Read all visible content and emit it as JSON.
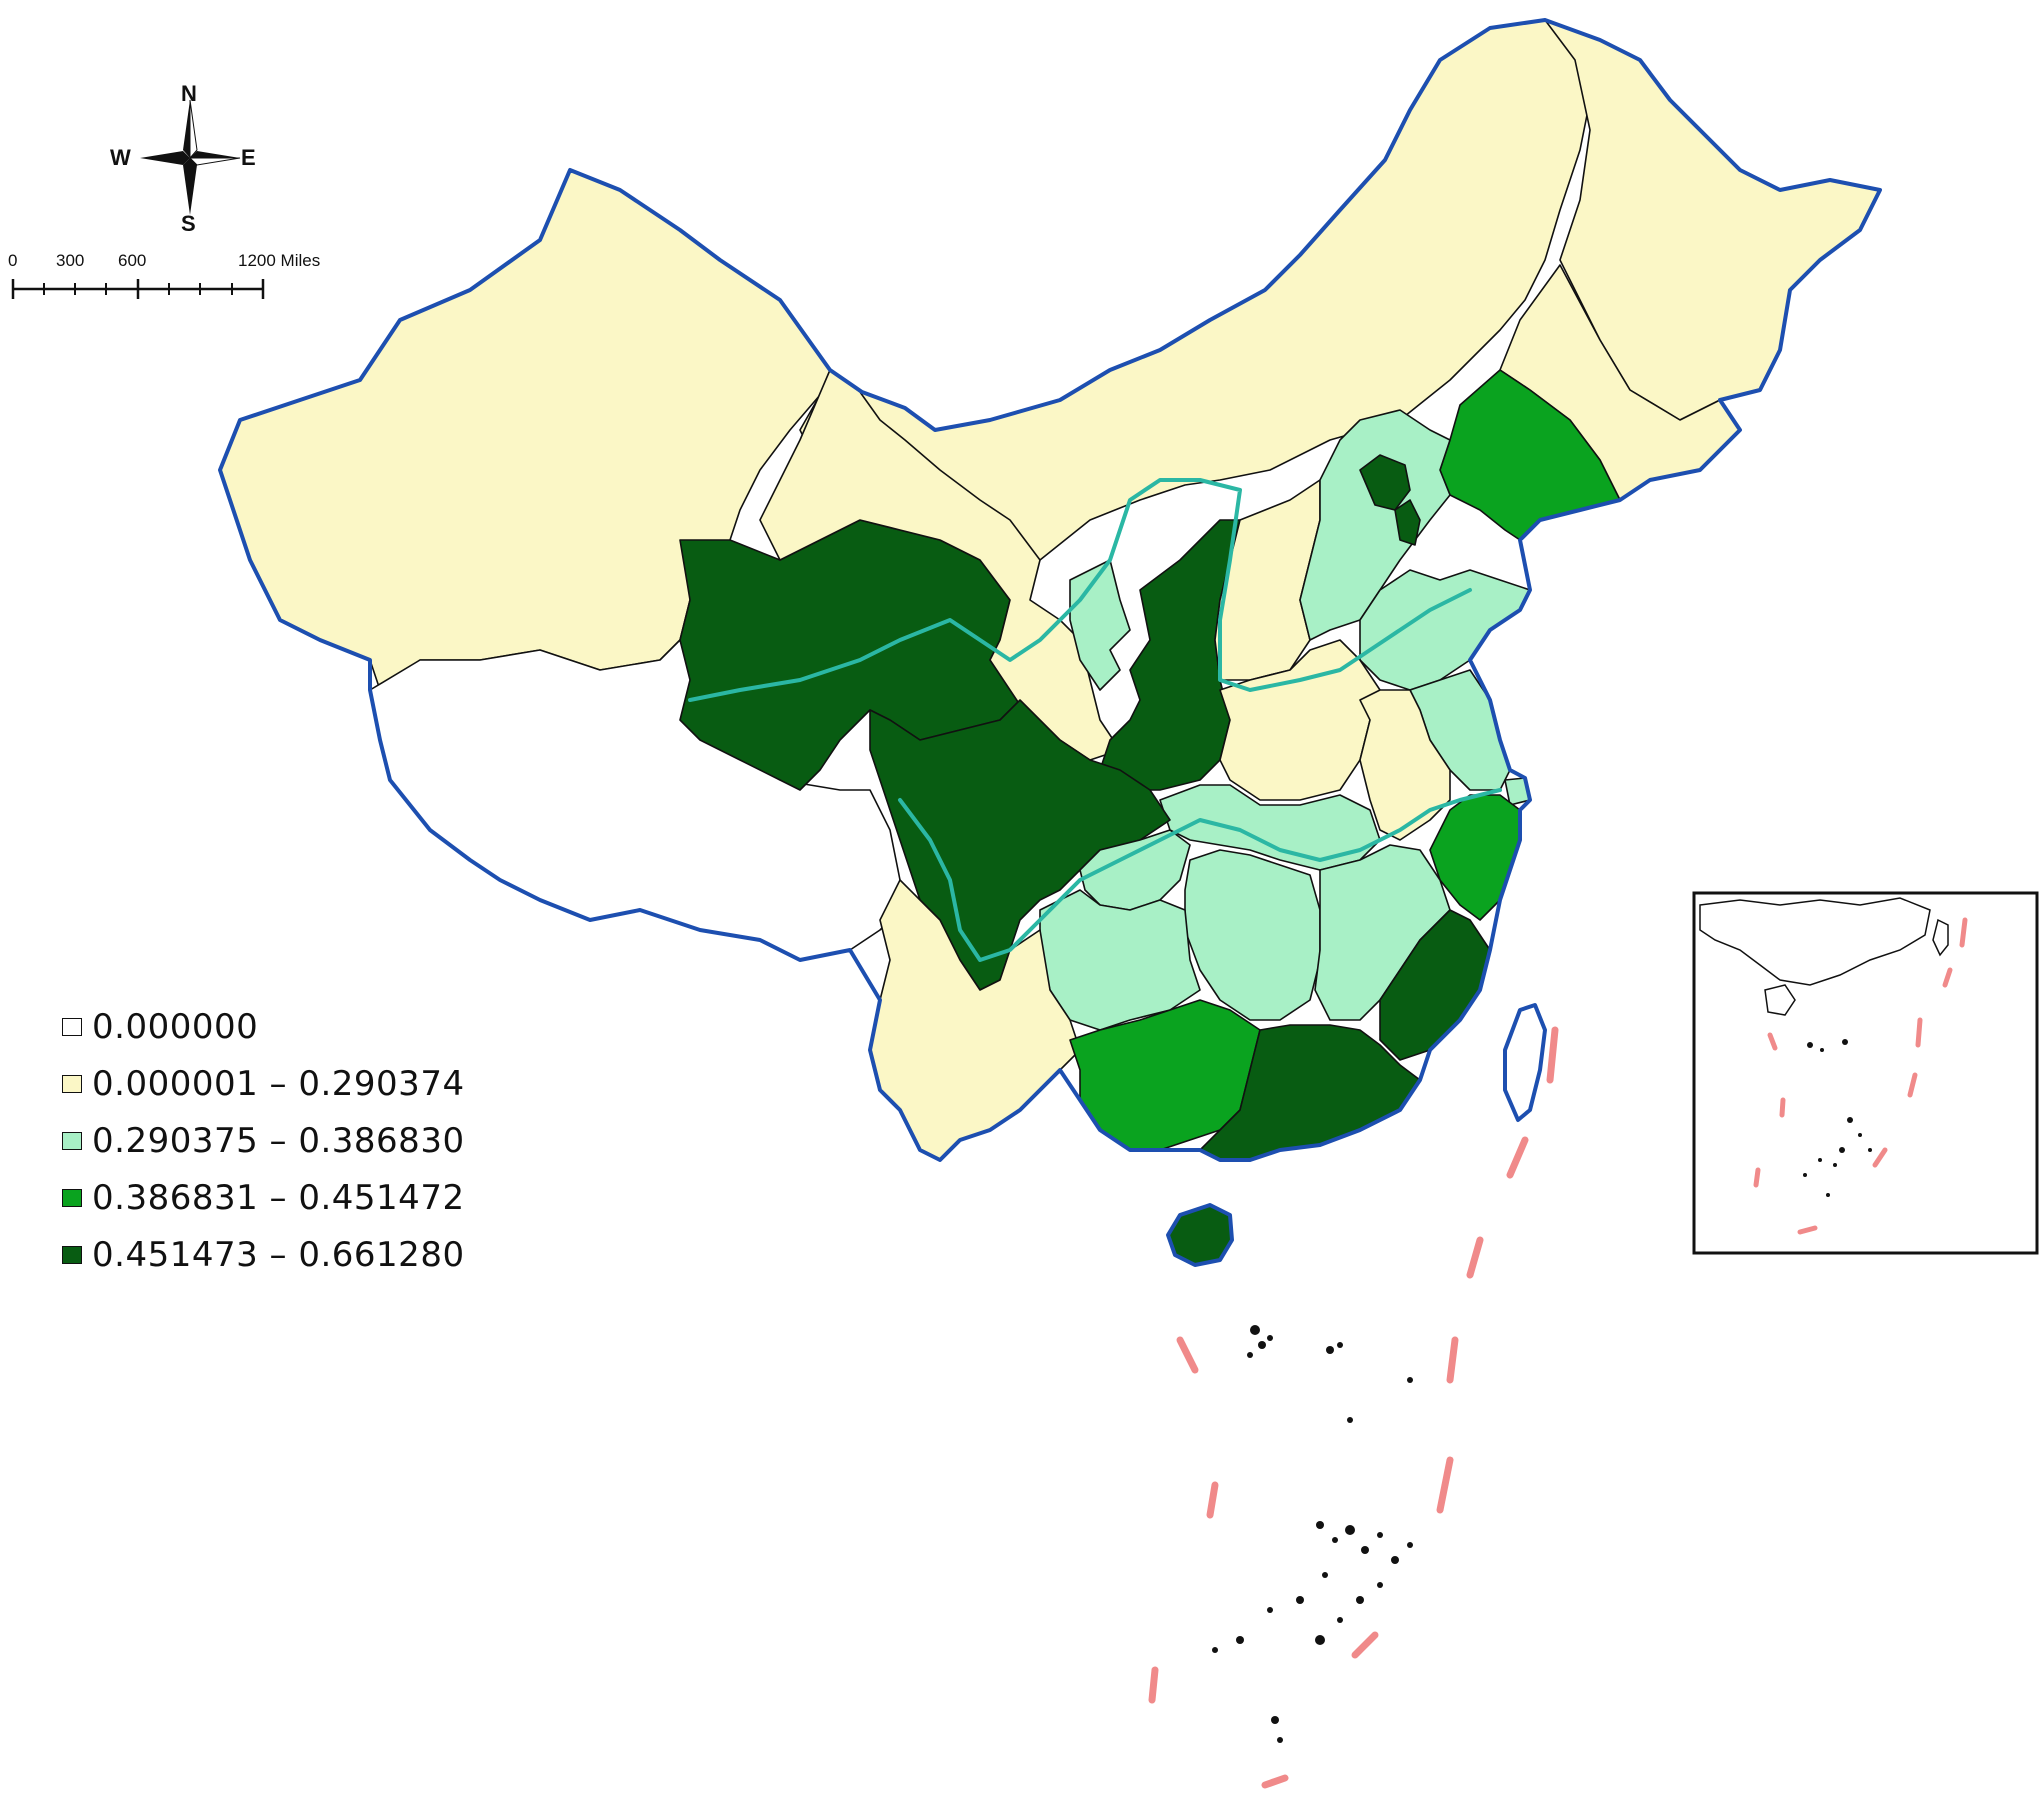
{
  "compass": {
    "north": "N",
    "south": "S",
    "east": "E",
    "west": "W"
  },
  "scale_bar": {
    "ticks": [
      "0",
      "300",
      "600",
      "1200 Miles"
    ]
  },
  "legend": {
    "items": [
      {
        "label": "0.000000",
        "color": "#ffffff"
      },
      {
        "label": "0.000001 – 0.290374",
        "color": "#fbf7c6"
      },
      {
        "label": "0.290375 – 0.386830",
        "color": "#a8f0c6"
      },
      {
        "label": "0.386831 – 0.451472",
        "color": "#0aa31f"
      },
      {
        "label": "0.451473 – 0.661280",
        "color": "#085c12"
      }
    ]
  },
  "map_colors": {
    "class_0": "#ffffff",
    "class_1": "#fbf7c6",
    "class_2": "#a8f0c6",
    "class_3": "#0aa31f",
    "class_4": "#085c12",
    "border": "#1d4fb0",
    "river": "#2bb7a4",
    "dashed_line": "#f08a8a"
  }
}
